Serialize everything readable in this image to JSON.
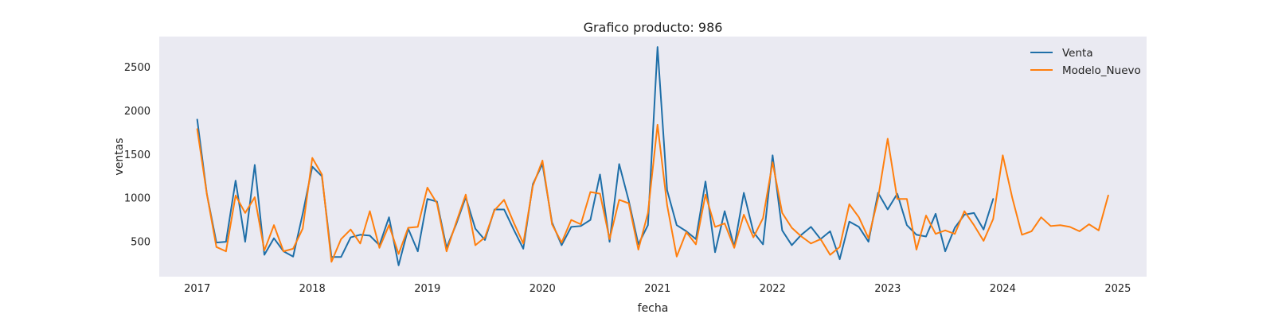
{
  "chart_data": {
    "type": "line",
    "title": "Grafico producto: 986",
    "xlabel": "fecha",
    "ylabel": "ventas",
    "xlim": [
      2016.67,
      2025.25
    ],
    "ylim": [
      100,
      2850
    ],
    "grid": false,
    "background": "#eaeaf2",
    "legend_position": "top-right",
    "x_ticks": [
      2017,
      2018,
      2019,
      2020,
      2021,
      2022,
      2023,
      2024,
      2025
    ],
    "x_tick_labels": [
      "2017",
      "2018",
      "2019",
      "2020",
      "2021",
      "2022",
      "2023",
      "2024",
      "2025"
    ],
    "y_ticks": [
      500,
      1000,
      1500,
      2000,
      2500
    ],
    "y_tick_labels": [
      "500",
      "1000",
      "1500",
      "2000",
      "2500"
    ],
    "series": [
      {
        "name": "Venta",
        "color": "#1f6fa8",
        "start_year": 2017,
        "values": [
          1900,
          1050,
          490,
          500,
          1200,
          500,
          1380,
          350,
          540,
          390,
          330,
          820,
          1360,
          1250,
          325,
          325,
          550,
          580,
          570,
          460,
          780,
          230,
          650,
          390,
          990,
          960,
          430,
          700,
          1010,
          650,
          520,
          870,
          870,
          640,
          420,
          1160,
          1390,
          720,
          460,
          670,
          680,
          750,
          1270,
          500,
          1390,
          970,
          470,
          690,
          2730,
          1090,
          690,
          620,
          530,
          1190,
          380,
          850,
          440,
          1060,
          610,
          470,
          1490,
          630,
          460,
          580,
          670,
          530,
          620,
          300,
          730,
          670,
          500,
          1060,
          870,
          1050,
          690,
          580,
          560,
          820,
          390,
          660,
          810,
          830,
          640,
          990
        ]
      },
      {
        "name": "Modelo_Nuevo",
        "color": "#ff7f0e",
        "start_year": 2017,
        "values": [
          1790,
          1050,
          440,
          390,
          1030,
          830,
          1010,
          400,
          690,
          390,
          420,
          650,
          1460,
          1270,
          270,
          530,
          640,
          480,
          850,
          430,
          690,
          360,
          660,
          670,
          1120,
          940,
          390,
          720,
          1040,
          460,
          550,
          860,
          980,
          720,
          480,
          1140,
          1430,
          700,
          490,
          750,
          700,
          1070,
          1050,
          530,
          980,
          940,
          410,
          830,
          1840,
          920,
          330,
          610,
          470,
          1040,
          670,
          710,
          430,
          810,
          550,
          770,
          1410,
          830,
          660,
          560,
          480,
          530,
          350,
          440,
          930,
          780,
          540,
          1000,
          1680,
          990,
          990,
          410,
          800,
          590,
          630,
          590,
          850,
          690,
          510,
          760,
          1490,
          1000,
          580,
          620,
          780,
          680,
          690,
          670,
          620,
          700,
          630,
          1030
        ]
      }
    ]
  }
}
